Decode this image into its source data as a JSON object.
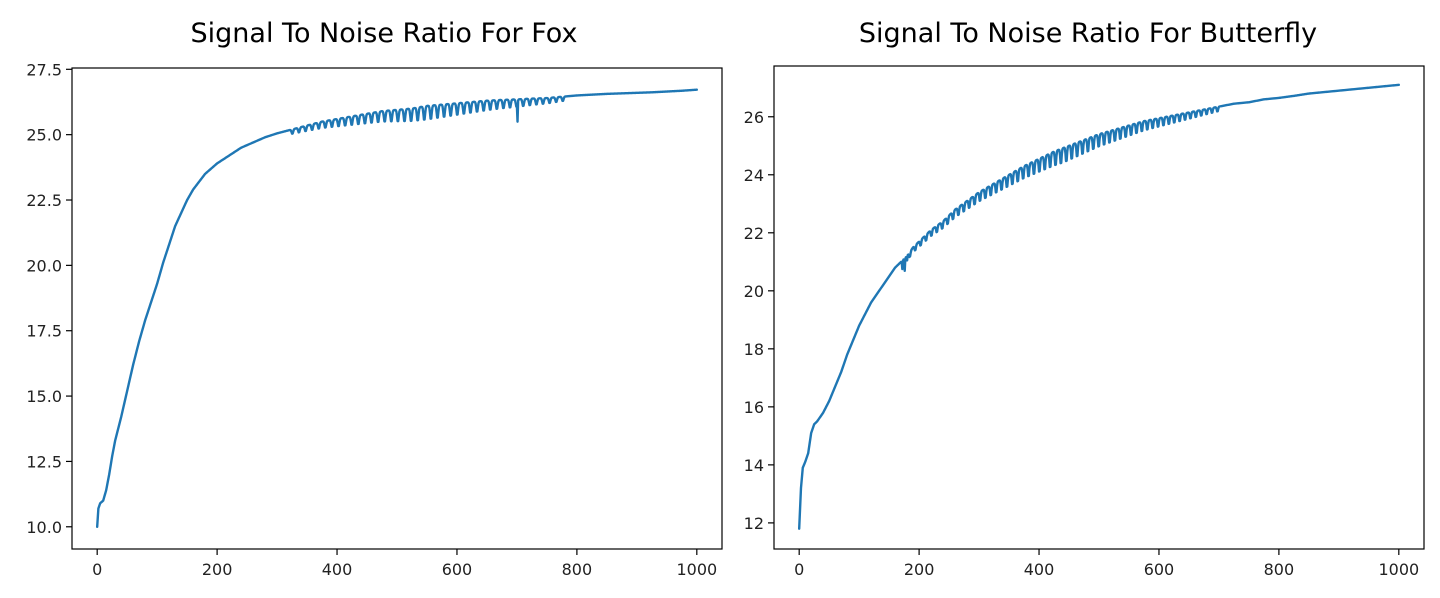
{
  "colors": {
    "series": "#1f77b4",
    "axes": "#000000",
    "background": "#ffffff"
  },
  "chart_data": [
    {
      "type": "line",
      "title": "Signal To Noise Ratio For Fox",
      "xlabel": "",
      "ylabel": "",
      "xlim": [
        -42,
        1042
      ],
      "ylim": [
        9.15,
        27.55
      ],
      "x_ticks": [
        0,
        200,
        400,
        600,
        800,
        1000
      ],
      "x_tick_labels": [
        "0",
        "200",
        "400",
        "600",
        "800",
        "1000"
      ],
      "y_ticks": [
        10.0,
        12.5,
        15.0,
        17.5,
        20.0,
        22.5,
        25.0,
        27.5
      ],
      "y_tick_labels": [
        "10.0",
        "12.5",
        "15.0",
        "17.5",
        "20.0",
        "22.5",
        "25.0",
        "27.5"
      ],
      "grid": false,
      "series": [
        {
          "x": [
            0,
            2,
            5,
            10,
            15,
            20,
            25,
            30,
            40,
            50,
            60,
            70,
            80,
            90,
            100,
            110,
            120,
            130,
            140,
            150,
            160,
            170,
            180,
            190,
            200,
            220,
            240,
            260,
            280,
            300,
            325,
            350,
            375,
            400,
            425,
            450,
            475,
            500,
            525,
            550,
            575,
            600,
            625,
            650,
            675,
            700,
            725,
            750,
            775,
            800,
            825,
            850,
            875,
            900,
            925,
            950,
            975,
            1000
          ],
          "y": [
            10.0,
            10.7,
            10.9,
            11.0,
            11.4,
            12.0,
            12.7,
            13.3,
            14.2,
            15.2,
            16.2,
            17.1,
            17.9,
            18.6,
            19.3,
            20.1,
            20.8,
            21.5,
            22.0,
            22.5,
            22.9,
            23.2,
            23.5,
            23.7,
            23.9,
            24.2,
            24.5,
            24.7,
            24.9,
            25.05,
            25.2,
            25.35,
            25.5,
            25.6,
            25.7,
            25.8,
            25.9,
            25.95,
            26.0,
            26.1,
            26.15,
            26.2,
            26.25,
            26.3,
            26.33,
            26.35,
            26.38,
            26.4,
            26.45,
            26.5,
            26.53,
            26.56,
            26.58,
            26.6,
            26.62,
            26.65,
            26.68,
            26.72
          ],
          "oscillations": [
            {
              "from": 320,
              "to": 780,
              "period": 11,
              "depth": 0.55
            },
            {
              "from": 700,
              "to": 702,
              "period": 2,
              "depth": 0.7
            }
          ]
        }
      ]
    },
    {
      "type": "line",
      "title": "Signal To Noise Ratio For Butterfly",
      "xlabel": "",
      "ylabel": "",
      "xlim": [
        -42,
        1042
      ],
      "ylim": [
        11.1,
        27.75
      ],
      "x_ticks": [
        0,
        200,
        400,
        600,
        800,
        1000
      ],
      "x_tick_labels": [
        "0",
        "200",
        "400",
        "600",
        "800",
        "1000"
      ],
      "y_ticks": [
        12,
        14,
        16,
        18,
        20,
        22,
        24,
        26
      ],
      "y_tick_labels": [
        "12",
        "14",
        "16",
        "18",
        "20",
        "22",
        "24",
        "26"
      ],
      "grid": false,
      "series": [
        {
          "x": [
            0,
            3,
            6,
            10,
            15,
            20,
            25,
            30,
            40,
            50,
            60,
            70,
            80,
            90,
            100,
            110,
            120,
            130,
            140,
            150,
            160,
            170,
            180,
            190,
            200,
            220,
            240,
            260,
            280,
            300,
            325,
            350,
            375,
            400,
            425,
            450,
            475,
            500,
            525,
            550,
            575,
            600,
            625,
            650,
            675,
            700,
            725,
            750,
            775,
            800,
            825,
            850,
            875,
            900,
            925,
            950,
            975,
            1000
          ],
          "y": [
            11.8,
            13.2,
            13.9,
            14.1,
            14.4,
            15.1,
            15.4,
            15.5,
            15.8,
            16.2,
            16.7,
            17.2,
            17.8,
            18.3,
            18.8,
            19.2,
            19.6,
            19.9,
            20.2,
            20.5,
            20.8,
            21.0,
            21.2,
            21.5,
            21.7,
            22.1,
            22.4,
            22.8,
            23.1,
            23.4,
            23.7,
            24.0,
            24.3,
            24.55,
            24.8,
            25.0,
            25.2,
            25.4,
            25.55,
            25.7,
            25.85,
            25.95,
            26.05,
            26.15,
            26.25,
            26.35,
            26.45,
            26.5,
            26.6,
            26.65,
            26.72,
            26.8,
            26.85,
            26.9,
            26.95,
            27.0,
            27.05,
            27.1
          ],
          "oscillations": [
            {
              "from": 180,
              "to": 700,
              "period": 9,
              "depth": 0.55
            },
            {
              "from": 170,
              "to": 180,
              "period": 4,
              "depth": 0.5
            }
          ]
        }
      ]
    }
  ]
}
